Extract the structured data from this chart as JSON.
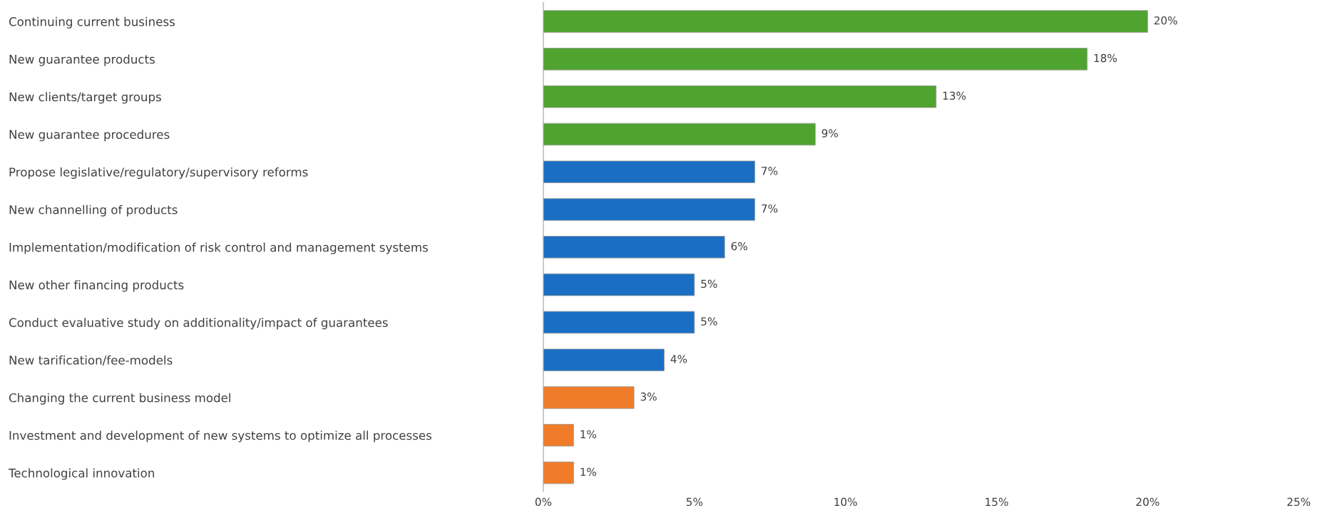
{
  "chart_data": {
    "type": "bar",
    "orientation": "horizontal",
    "categories": [
      "Continuing current business",
      "New guarantee products",
      "New clients/target groups",
      "New guarantee procedures",
      "Propose legislative/regulatory/supervisory reforms",
      "New channelling of products",
      "Implementation/modification of risk control and management systems",
      "New other financing products",
      "Conduct evaluative study on additionality/impact of guarantees",
      "New tarification/fee-models",
      "Changing the current business model",
      "Investment and development of new systems to optimize all processes",
      "Technological innovation"
    ],
    "values": [
      20,
      18,
      13,
      9,
      7,
      7,
      6,
      5,
      5,
      4,
      3,
      1,
      1
    ],
    "colors": [
      "#4fa42f",
      "#4fa42f",
      "#4fa42f",
      "#4fa42f",
      "#1a6fc4",
      "#1a6fc4",
      "#1a6fc4",
      "#1a6fc4",
      "#1a6fc4",
      "#1a6fc4",
      "#f07c29",
      "#f07c29",
      "#f07c29"
    ],
    "value_labels": [
      "20%",
      "18%",
      "13%",
      "9%",
      "7%",
      "7%",
      "6%",
      "5%",
      "5%",
      "4%",
      "3%",
      "1%",
      "1%"
    ],
    "xlim": [
      0,
      25
    ],
    "xticks": [
      {
        "value": 0,
        "label": "0%"
      },
      {
        "value": 5,
        "label": "5%"
      },
      {
        "value": 10,
        "label": "10%"
      },
      {
        "value": 15,
        "label": "15%"
      },
      {
        "value": 20,
        "label": "20%"
      },
      {
        "value": 25,
        "label": "25%"
      }
    ],
    "grid": false,
    "legend": false
  }
}
